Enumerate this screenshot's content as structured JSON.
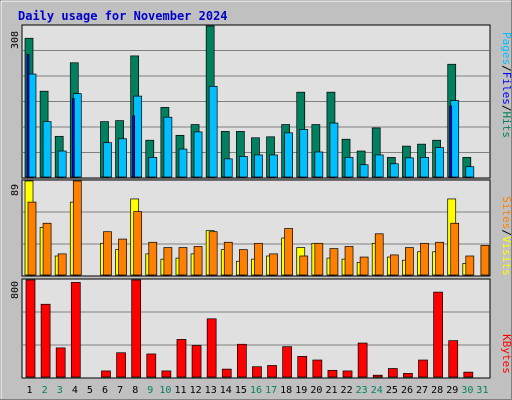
{
  "chart_data": {
    "type": "bar",
    "title": "Daily usage for November 2024",
    "categories": [
      "1",
      "2",
      "3",
      "4",
      "5",
      "6",
      "7",
      "8",
      "9",
      "10",
      "11",
      "12",
      "13",
      "14",
      "15",
      "16",
      "17",
      "18",
      "19",
      "20",
      "21",
      "22",
      "23",
      "24",
      "25",
      "26",
      "27",
      "28",
      "29",
      "30",
      "31"
    ],
    "weekend_days": [
      "2",
      "3",
      "9",
      "10",
      "16",
      "17",
      "23",
      "24",
      "30",
      "31"
    ],
    "panels": [
      {
        "id": "hits-files-pages",
        "ymax_label": "308",
        "ymax": 308,
        "side_label": [
          "Pages",
          "Files",
          "Hits"
        ],
        "series": [
          {
            "name": "Hits",
            "color": "#00805e",
            "values": [
              283,
              175,
              83,
              233,
              0,
              113,
              115,
              247,
              75,
              142,
              85,
              107,
              308,
              93,
              93,
              80,
              82,
              107,
              173,
              107,
              173,
              77,
              53,
              100,
              40,
              63,
              67,
              75,
              230,
              40,
              0
            ]
          },
          {
            "name": "Files",
            "color": "#00bfff",
            "values": [
              210,
              113,
              53,
              170,
              0,
              70,
              78,
              165,
              40,
              122,
              57,
              92,
              185,
              37,
              42,
              45,
              45,
              90,
              97,
              51,
              110,
              40,
              25,
              45,
              27,
              39,
              40,
              60,
              156,
              21,
              0
            ]
          },
          {
            "name": "Pages",
            "color": "#0000ff",
            "values": [
              250,
              0,
              0,
              160,
              0,
              0,
              0,
              125,
              0,
              0,
              0,
              0,
              0,
              0,
              0,
              0,
              0,
              0,
              0,
              0,
              0,
              0,
              0,
              0,
              0,
              0,
              0,
              0,
              145,
              0,
              0
            ]
          }
        ]
      },
      {
        "id": "visits-sites",
        "ymax_label": "89",
        "ymax": 89,
        "side_label": [
          "Sites",
          "Visits"
        ],
        "series": [
          {
            "name": "Visits",
            "color": "#ffff00",
            "values": [
              89,
              45,
              18,
              69,
              0,
              30,
              24,
              72,
              20,
              15,
              16,
              20,
              42,
              24,
              13,
              15,
              18,
              35,
              26,
              30,
              16,
              15,
              12,
              30,
              17,
              14,
              22,
              22,
              72,
              11,
              0
            ]
          },
          {
            "name": "Sites",
            "color": "#ff8000",
            "values": [
              69,
              49,
              20,
              89,
              0,
              41,
              34,
              60,
              31,
              26,
              26,
              27,
              41,
              31,
              24,
              30,
              20,
              44,
              18,
              30,
              25,
              27,
              17,
              39,
              19,
              26,
              30,
              31,
              49,
              18,
              28
            ]
          }
        ]
      },
      {
        "id": "kbytes",
        "ymax_label": "800",
        "ymax": 800,
        "side_label": [
          "KBytes"
        ],
        "series": [
          {
            "name": "KBytes",
            "color": "#ff0000",
            "values": [
              800,
              600,
              240,
              780,
              0,
              50,
              200,
              800,
              190,
              50,
              310,
              260,
              480,
              65,
              270,
              85,
              95,
              250,
              170,
              140,
              55,
              50,
              280,
              15,
              70,
              30,
              140,
              700,
              300,
              40,
              0
            ]
          }
        ]
      }
    ]
  }
}
